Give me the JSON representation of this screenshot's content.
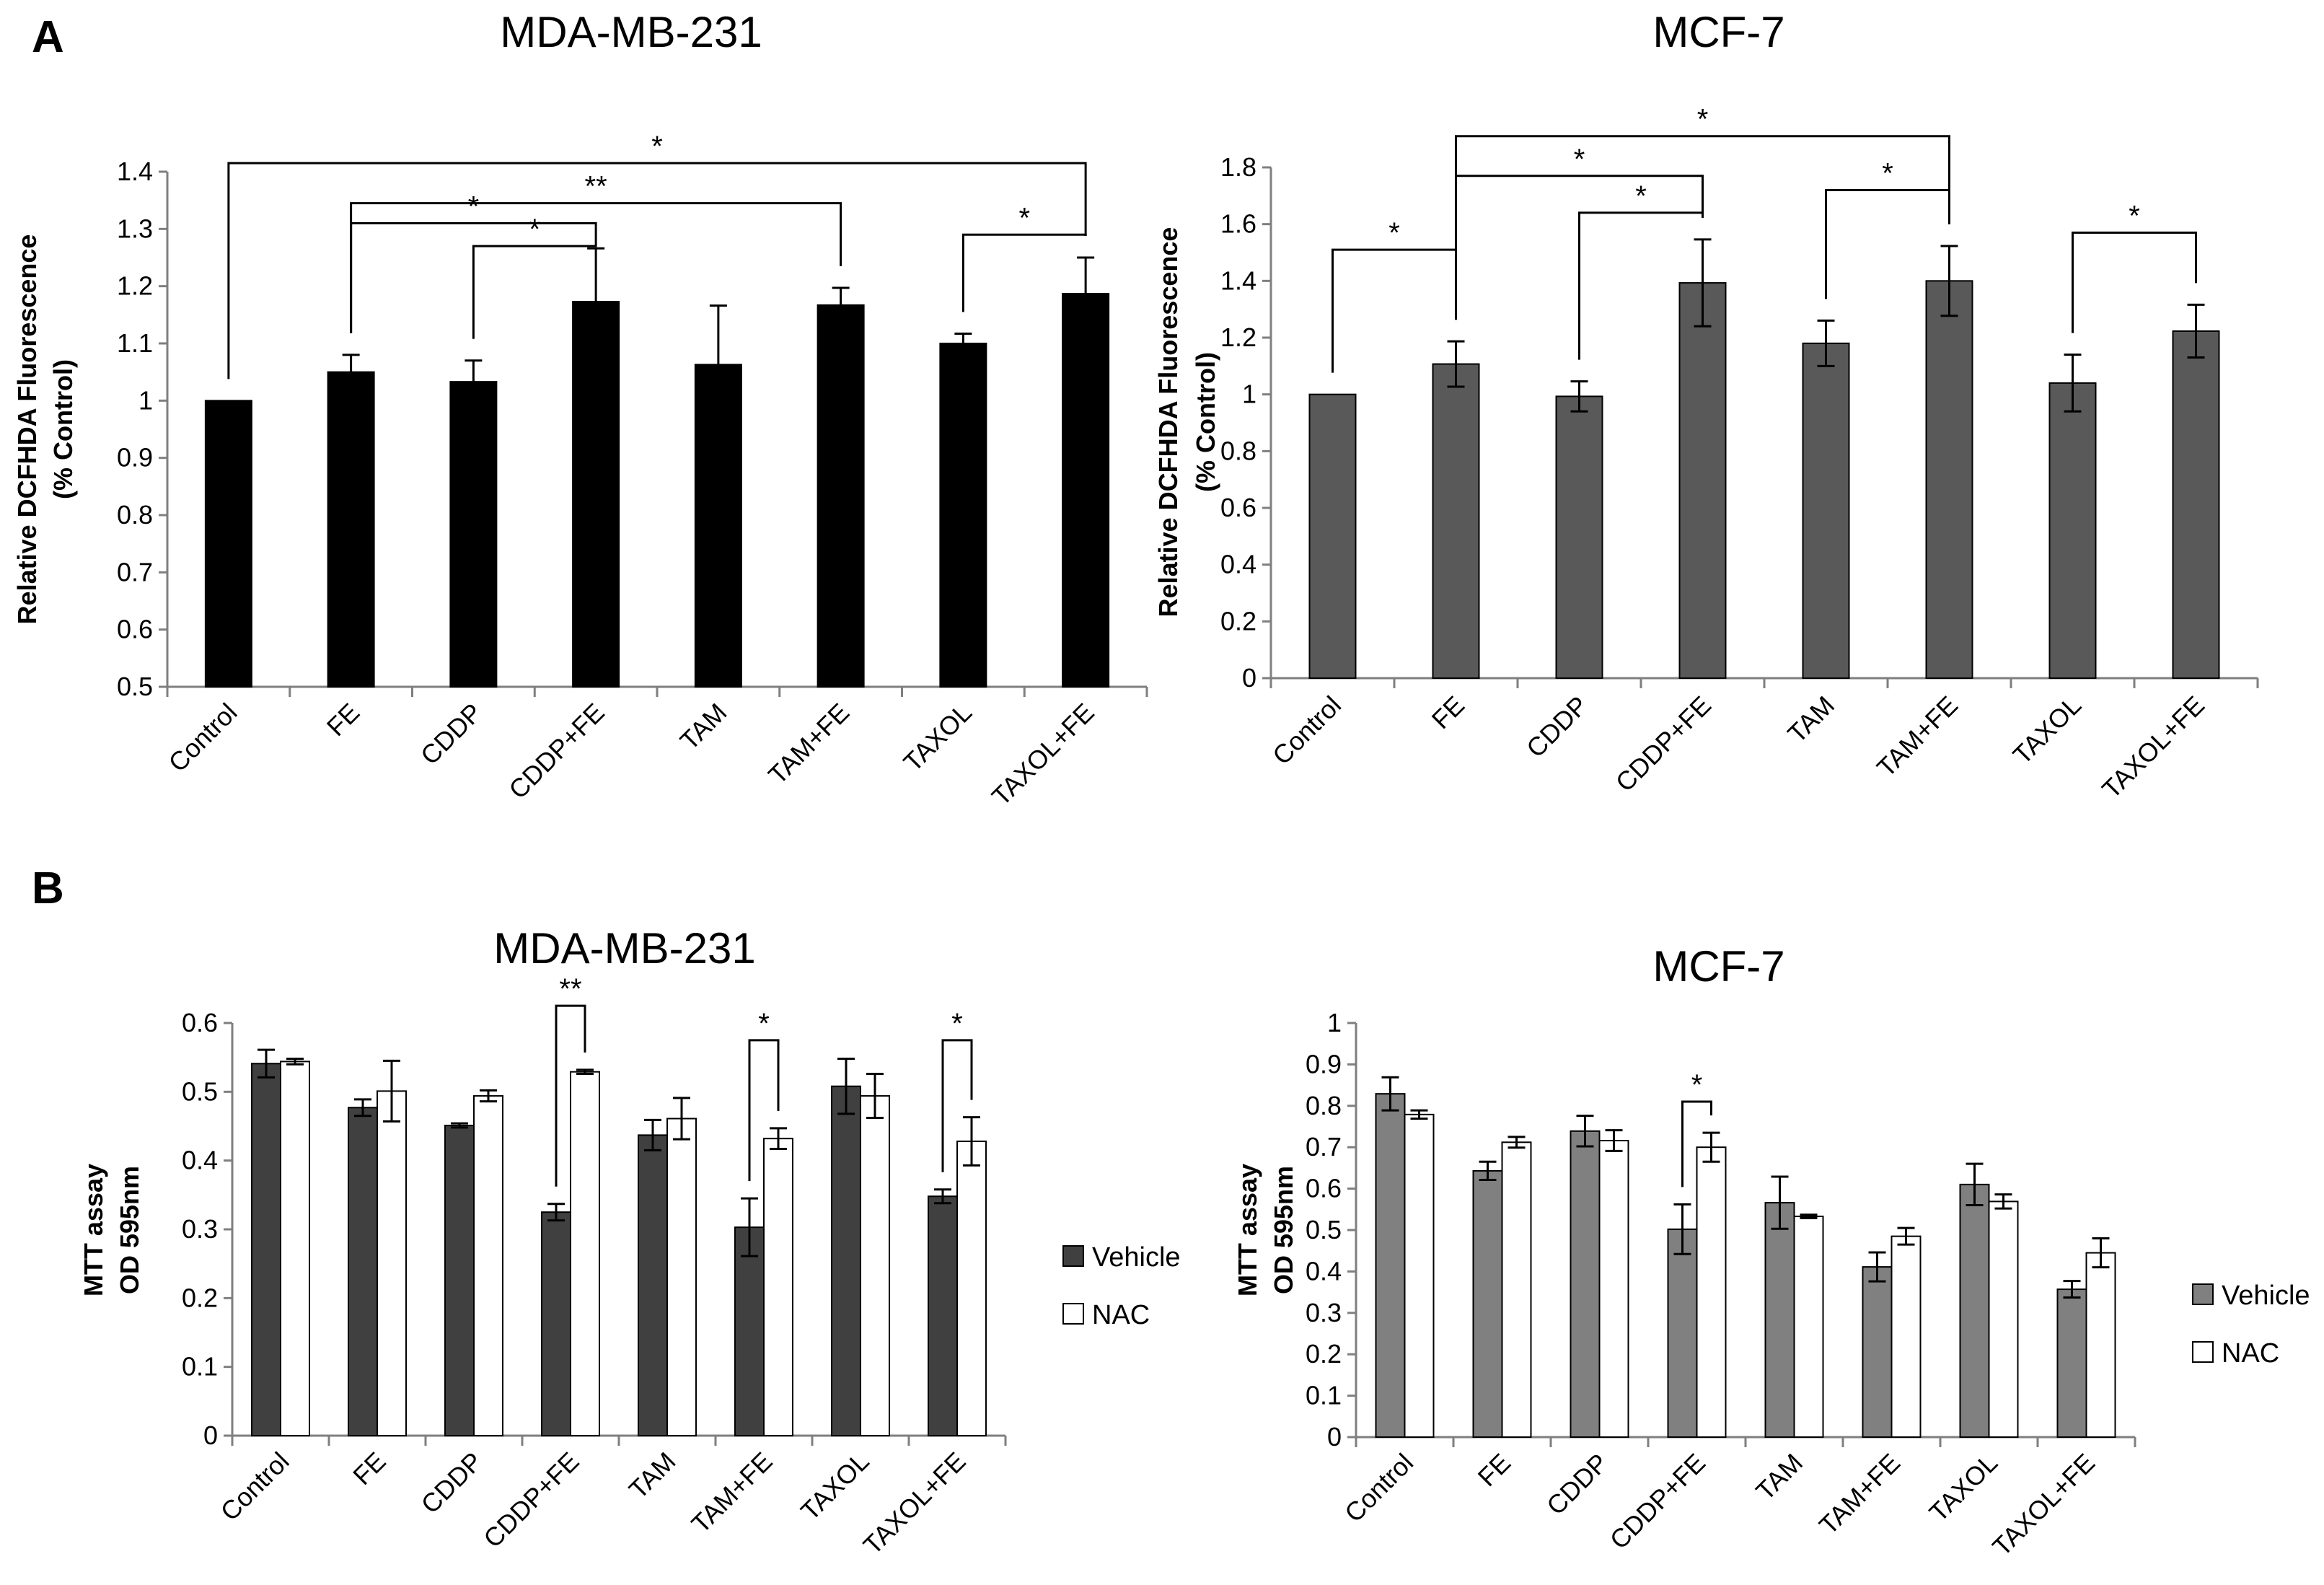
{
  "panels": {
    "A": "A",
    "B": "B"
  },
  "chart_data": [
    {
      "id": "A1",
      "panel": "A",
      "type": "bar",
      "title": "MDA-MB-231",
      "ylabel": [
        "Relative DCFHDA Fluorescence",
        "(% Control)"
      ],
      "ylim": [
        0.5,
        1.4
      ],
      "yticks": [
        0.5,
        0.6,
        0.7,
        0.8,
        0.9,
        1,
        1.1,
        1.2,
        1.3,
        1.4
      ],
      "categories": [
        "Control",
        "FE",
        "CDDP",
        "CDDP+FE",
        "TAM",
        "TAM+FE",
        "TAXOL",
        "TAXOL+FE"
      ],
      "series": [
        {
          "color": "#000000",
          "values": [
            1.0,
            1.05,
            1.033,
            1.173,
            1.063,
            1.167,
            1.1,
            1.187
          ],
          "errors": [
            0,
            0.03,
            0.037,
            0.093,
            0.103,
            0.03,
            0.017,
            0.063
          ]
        }
      ],
      "significance": [
        {
          "from": 0,
          "to": 7,
          "label": "*",
          "level": 1.415
        },
        {
          "from": 1,
          "to": 5,
          "label": "**",
          "level": 1.345
        },
        {
          "from": 1,
          "to": 3,
          "label": "*",
          "level": 1.31
        },
        {
          "from": 2,
          "to": 3,
          "label": "*",
          "level": 1.27
        },
        {
          "from": 6,
          "to": 7,
          "label": "*",
          "level": 1.29
        }
      ]
    },
    {
      "id": "A2",
      "panel": "A",
      "type": "bar",
      "title": "MCF-7",
      "ylabel": [
        "Relative DCFHDA Fluorescence",
        "(% Control)"
      ],
      "ylim": [
        0,
        1.8
      ],
      "yticks": [
        0,
        0.2,
        0.4,
        0.6,
        0.8,
        1,
        1.2,
        1.4,
        1.6,
        1.8
      ],
      "categories": [
        "Control",
        "FE",
        "CDDP",
        "CDDP+FE",
        "TAM",
        "TAM+FE",
        "TAXOL",
        "TAXOL+FE"
      ],
      "series": [
        {
          "color": "#595959",
          "values": [
            1.0,
            1.107,
            0.993,
            1.393,
            1.18,
            1.4,
            1.04,
            1.223
          ],
          "errors": [
            0,
            0.08,
            0.053,
            0.153,
            0.08,
            0.123,
            0.1,
            0.093
          ]
        }
      ],
      "significance": [
        {
          "from": 1,
          "to": 5,
          "label": "*",
          "level": 1.91
        },
        {
          "from": 1,
          "to": 3,
          "label": "*",
          "level": 1.77
        },
        {
          "from": 0,
          "to": 1,
          "label": "*",
          "level": 1.51
        },
        {
          "from": 2,
          "to": 3,
          "label": "*",
          "level": 1.64
        },
        {
          "from": 4,
          "to": 5,
          "label": "*",
          "level": 1.72
        },
        {
          "from": 6,
          "to": 7,
          "label": "*",
          "level": 1.57
        }
      ]
    },
    {
      "id": "B1",
      "panel": "B",
      "type": "bar",
      "title": "MDA-MB-231",
      "ylabel": [
        "MTT assay",
        "OD 595nm"
      ],
      "ylim": [
        0,
        0.6
      ],
      "yticks": [
        0,
        0.1,
        0.2,
        0.3,
        0.4,
        0.5,
        0.6
      ],
      "categories": [
        "Control",
        "FE",
        "CDDP",
        "CDDP+FE",
        "TAM",
        "TAM+FE",
        "TAXOL",
        "TAXOL+FE"
      ],
      "series": [
        {
          "name": "Vehicle",
          "color": "#404040",
          "values": [
            0.541,
            0.477,
            0.451,
            0.325,
            0.437,
            0.303,
            0.508,
            0.348
          ],
          "errors": [
            0.02,
            0.012,
            0.003,
            0.012,
            0.022,
            0.042,
            0.04,
            0.01
          ]
        },
        {
          "name": "NAC",
          "color": "#ffffff",
          "values": [
            0.544,
            0.501,
            0.494,
            0.529,
            0.461,
            0.432,
            0.494,
            0.428
          ],
          "errors": [
            0.004,
            0.044,
            0.008,
            0.003,
            0.03,
            0.015,
            0.032,
            0.035
          ]
        }
      ],
      "significance": [
        {
          "group": 3,
          "label": "**",
          "level": 0.625
        },
        {
          "group": 5,
          "label": "*",
          "level": 0.575
        },
        {
          "group": 7,
          "label": "*",
          "level": 0.575
        }
      ]
    },
    {
      "id": "B2",
      "panel": "B",
      "type": "bar",
      "title": "MCF-7",
      "ylabel": [
        "MTT assay",
        "OD 595nm"
      ],
      "ylim": [
        0,
        1
      ],
      "yticks": [
        0,
        0.1,
        0.2,
        0.3,
        0.4,
        0.5,
        0.6,
        0.7,
        0.8,
        0.9,
        1
      ],
      "categories": [
        "Control",
        "FE",
        "CDDP",
        "CDDP+FE",
        "TAM",
        "TAM+FE",
        "TAXOL",
        "TAXOL+FE"
      ],
      "series": [
        {
          "name": "Vehicle",
          "color": "#808080",
          "values": [
            0.829,
            0.643,
            0.739,
            0.502,
            0.566,
            0.411,
            0.61,
            0.357
          ],
          "errors": [
            0.04,
            0.022,
            0.037,
            0.06,
            0.063,
            0.035,
            0.05,
            0.02
          ]
        },
        {
          "name": "NAC",
          "color": "#ffffff",
          "values": [
            0.779,
            0.712,
            0.716,
            0.7,
            0.533,
            0.485,
            0.569,
            0.445
          ],
          "errors": [
            0.01,
            0.013,
            0.025,
            0.035,
            0.004,
            0.02,
            0.017,
            0.035
          ]
        }
      ],
      "significance": [
        {
          "group": 3,
          "label": "*",
          "level": 0.81
        }
      ]
    }
  ]
}
